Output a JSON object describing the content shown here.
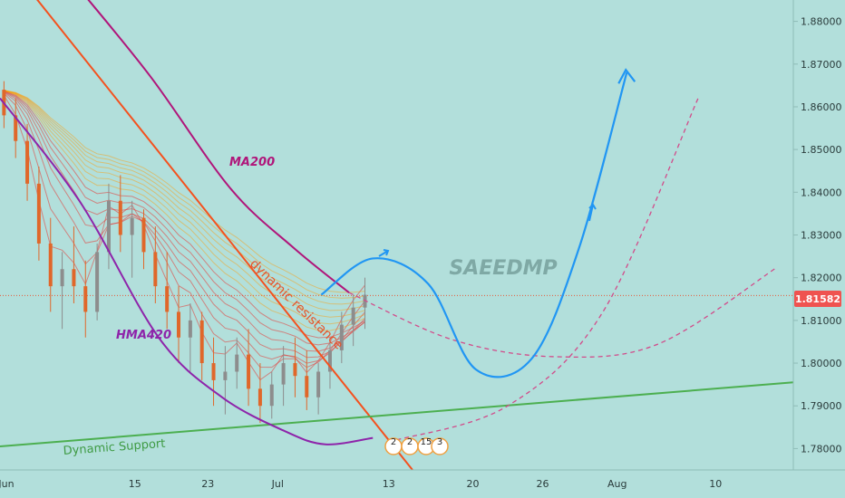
{
  "chart_data": {
    "type": "candlestick",
    "symbol_watermark": "SAEEDMP",
    "price_axis": {
      "ticks": [
        "1.88000",
        "1.87000",
        "1.86000",
        "1.85000",
        "1.84000",
        "1.83000",
        "1.82000",
        "1.81000",
        "1.80000",
        "1.79000",
        "1.78000"
      ],
      "min": 1.775,
      "max": 1.885
    },
    "time_axis": {
      "ticks": [
        "Jun",
        "15",
        "23",
        "Jul",
        "13",
        "20",
        "26",
        "Aug",
        "10"
      ]
    },
    "current_price": {
      "value": 1.81582,
      "label": "1.81582"
    },
    "annotations": {
      "ma200": "MA200",
      "hma420": "HMA420",
      "dynamic_resistance": "dynamic resistance",
      "dynamic_support": "Dynamic Support"
    },
    "event_markers": [
      "2",
      "2",
      "15",
      "3"
    ],
    "lines": {
      "ma200": [
        {
          "t": 0.096,
          "p": 1.8885
        },
        {
          "t": 0.19,
          "p": 1.867
        },
        {
          "t": 0.29,
          "p": 1.841
        },
        {
          "t": 0.37,
          "p": 1.827
        },
        {
          "t": 0.44,
          "p": 1.8165
        }
      ],
      "hma420": [
        {
          "t": 0.0,
          "p": 1.862
        },
        {
          "t": 0.1,
          "p": 1.838
        },
        {
          "t": 0.2,
          "p": 1.806
        },
        {
          "t": 0.28,
          "p": 1.792
        },
        {
          "t": 0.36,
          "p": 1.784
        },
        {
          "t": 0.41,
          "p": 1.781
        },
        {
          "t": 0.47,
          "p": 1.7825
        }
      ],
      "dynamic_resistance": [
        {
          "t": 0.0,
          "p": 1.896
        },
        {
          "t": 0.52,
          "p": 1.775
        }
      ],
      "dynamic_support": [
        {
          "t": 0.0,
          "p": 1.7805
        },
        {
          "t": 1.0,
          "p": 1.7955
        }
      ],
      "projection_blue": [
        {
          "t": 0.405,
          "p": 1.816
        },
        {
          "t": 0.47,
          "p": 1.8245
        },
        {
          "t": 0.54,
          "p": 1.8185
        },
        {
          "t": 0.6,
          "p": 1.7985
        },
        {
          "t": 0.67,
          "p": 1.801
        },
        {
          "t": 0.73,
          "p": 1.827
        },
        {
          "t": 0.79,
          "p": 1.868
        }
      ],
      "projection_dashed_1": [
        {
          "t": 0.44,
          "p": 1.8165
        },
        {
          "t": 0.57,
          "p": 1.8055
        },
        {
          "t": 0.7,
          "p": 1.8015
        },
        {
          "t": 0.83,
          "p": 1.8045
        },
        {
          "t": 0.98,
          "p": 1.8225
        }
      ],
      "projection_dashed_2": [
        {
          "t": 0.5,
          "p": 1.782
        },
        {
          "t": 0.64,
          "p": 1.79
        },
        {
          "t": 0.76,
          "p": 1.812
        },
        {
          "t": 0.88,
          "p": 1.862
        }
      ]
    },
    "candles_summary": "approx OHLC sequence from Jun to early Jul",
    "candles": [
      [
        1.864,
        1.866,
        1.855,
        1.858
      ],
      [
        1.858,
        1.862,
        1.848,
        1.852
      ],
      [
        1.852,
        1.856,
        1.838,
        1.842
      ],
      [
        1.842,
        1.846,
        1.824,
        1.828
      ],
      [
        1.828,
        1.834,
        1.812,
        1.818
      ],
      [
        1.818,
        1.826,
        1.808,
        1.822
      ],
      [
        1.822,
        1.832,
        1.814,
        1.818
      ],
      [
        1.818,
        1.824,
        1.806,
        1.812
      ],
      [
        1.812,
        1.828,
        1.81,
        1.826
      ],
      [
        1.826,
        1.842,
        1.822,
        1.838
      ],
      [
        1.838,
        1.844,
        1.826,
        1.83
      ],
      [
        1.83,
        1.838,
        1.82,
        1.834
      ],
      [
        1.834,
        1.836,
        1.822,
        1.826
      ],
      [
        1.826,
        1.832,
        1.814,
        1.818
      ],
      [
        1.818,
        1.826,
        1.808,
        1.812
      ],
      [
        1.812,
        1.818,
        1.8,
        1.806
      ],
      [
        1.806,
        1.814,
        1.798,
        1.81
      ],
      [
        1.81,
        1.812,
        1.796,
        1.8
      ],
      [
        1.8,
        1.806,
        1.79,
        1.796
      ],
      [
        1.796,
        1.804,
        1.788,
        1.798
      ],
      [
        1.798,
        1.806,
        1.794,
        1.802
      ],
      [
        1.802,
        1.808,
        1.79,
        1.794
      ],
      [
        1.794,
        1.8,
        1.786,
        1.79
      ],
      [
        1.79,
        1.798,
        1.787,
        1.795
      ],
      [
        1.795,
        1.804,
        1.79,
        1.8
      ],
      [
        1.8,
        1.806,
        1.792,
        1.797
      ],
      [
        1.797,
        1.803,
        1.789,
        1.792
      ],
      [
        1.792,
        1.8,
        1.788,
        1.798
      ],
      [
        1.798,
        1.806,
        1.794,
        1.803
      ],
      [
        1.803,
        1.812,
        1.8,
        1.809
      ],
      [
        1.809,
        1.816,
        1.804,
        1.813
      ],
      [
        1.813,
        1.82,
        1.808,
        1.816
      ]
    ],
    "colors": {
      "background": "#b2dfdb",
      "ma200": "#b0157a",
      "hma420": "#8e24aa",
      "resistance": "#f4511e",
      "support": "#4caf50",
      "projection_blue": "#2196f3",
      "projection_dashed": "#d24b8a",
      "price_label_bg": "#ef5350",
      "watermark": "#7fa9a5"
    }
  }
}
